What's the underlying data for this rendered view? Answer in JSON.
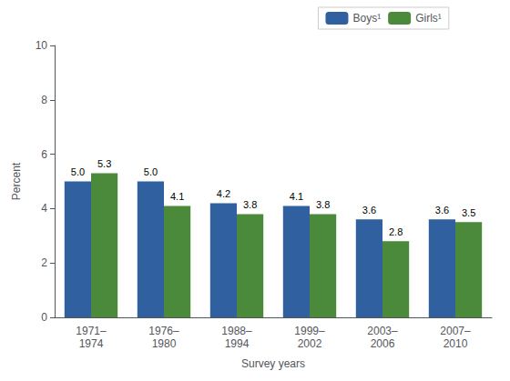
{
  "chart_data": {
    "type": "bar",
    "categories": [
      "1971–\n1974",
      "1976–\n1980",
      "1988–\n1994",
      "1999–\n2002",
      "2003–\n2006",
      "2007–\n2010"
    ],
    "series": [
      {
        "name": "Boys¹",
        "color": "#3060a0",
        "values": [
          5.0,
          5.0,
          4.2,
          4.1,
          3.6,
          3.6
        ],
        "value_labels": [
          "5.0",
          "5.0",
          "4.2",
          "4.1",
          "3.6",
          "3.6"
        ]
      },
      {
        "name": "Girls¹",
        "color": "#4a8a3a",
        "values": [
          5.3,
          4.1,
          3.8,
          3.8,
          2.8,
          3.5
        ],
        "value_labels": [
          "5.3",
          "4.1",
          "3.8",
          "3.8",
          "2.8",
          "3.5"
        ]
      }
    ],
    "xlabel": "Survey years",
    "ylabel": "Percent",
    "ylim": [
      0,
      10
    ],
    "yticks": [
      0,
      2,
      4,
      6,
      8,
      10
    ],
    "grid": false,
    "legend": "upper right",
    "data_labels": true
  }
}
